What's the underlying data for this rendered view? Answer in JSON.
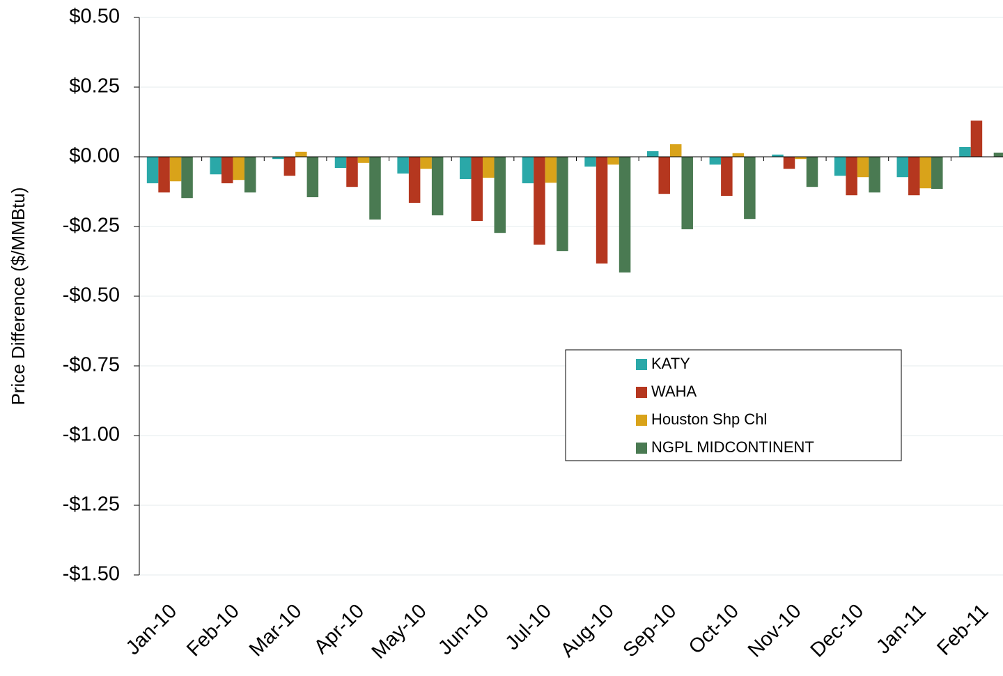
{
  "chart_data": {
    "type": "bar",
    "y_label": "Price Difference  ($/MMBtu)",
    "categories": [
      "Jan-10",
      "Feb-10",
      "Mar-10",
      "Apr-10",
      "May-10",
      "Jun-10",
      "Jul-10",
      "Aug-10",
      "Sep-10",
      "Oct-10",
      "Nov-10",
      "Dec-10",
      "Jan-11",
      "Feb-11"
    ],
    "series": [
      {
        "name": "KATY",
        "color": "#2aa8a8",
        "values": [
          -0.095,
          -0.063,
          -0.008,
          -0.04,
          -0.06,
          -0.08,
          -0.095,
          -0.035,
          0.02,
          -0.028,
          0.008,
          -0.068,
          -0.073,
          0.035
        ]
      },
      {
        "name": "WAHA",
        "color": "#b5371f",
        "values": [
          -0.128,
          -0.095,
          -0.068,
          -0.108,
          -0.165,
          -0.23,
          -0.315,
          -0.383,
          -0.133,
          -0.14,
          -0.043,
          -0.138,
          -0.138,
          0.13
        ]
      },
      {
        "name": "Houston Shp Chl",
        "color": "#d9a31a",
        "values": [
          -0.088,
          -0.083,
          0.018,
          -0.022,
          -0.043,
          -0.075,
          -0.093,
          -0.028,
          0.045,
          0.013,
          -0.008,
          -0.073,
          -0.113,
          0
        ]
      },
      {
        "name": "NGPL MIDCONTINENT",
        "color": "#4a7a52",
        "values": [
          -0.148,
          -0.128,
          -0.145,
          -0.225,
          -0.21,
          -0.273,
          -0.338,
          -0.415,
          -0.26,
          -0.223,
          -0.108,
          -0.128,
          -0.115,
          0.015
        ]
      }
    ],
    "ylim": [
      -1.5,
      0.5
    ],
    "yticks": [
      {
        "value": 0.5,
        "label": "$0.50"
      },
      {
        "value": 0.25,
        "label": "$0.25"
      },
      {
        "value": 0,
        "label": "$0.00"
      },
      {
        "value": -0.25,
        "label": "-$0.25"
      },
      {
        "value": -0.5,
        "label": "-$0.50"
      },
      {
        "value": -0.75,
        "label": "-$0.75"
      },
      {
        "value": -1,
        "label": "-$1.00"
      },
      {
        "value": -1.25,
        "label": "-$1.25"
      },
      {
        "value": -1.5,
        "label": "-$1.50"
      }
    ],
    "grid": true
  }
}
